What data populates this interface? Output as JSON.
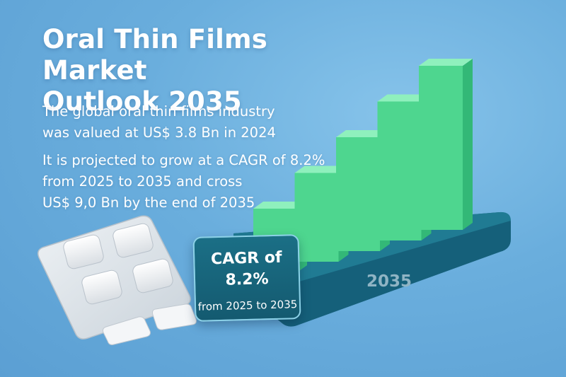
{
  "header": {
    "title_line1": "Oral Thin Films Market",
    "title_line2": "Outlook 2035"
  },
  "body_text": {
    "line1": "The global oral thin films industry",
    "line2": "was valued at US$ 3.8 Bn in 2024",
    "line3": "It is projected to grow at a CAGR of 8.2%",
    "line4": "from 2025 to 2035 and cross",
    "line5": "US$ 9,0 Bn by the end of 2035"
  },
  "badge": {
    "title": "CAGR of 8.2%",
    "subtitle": "from 2025 to 2035"
  },
  "chart_data": {
    "type": "bar",
    "categories": [
      "",
      "",
      "",
      "",
      ""
    ],
    "values": [
      1,
      2,
      3,
      4,
      5
    ],
    "platform_label": "2035",
    "colors": {
      "bar_front": "#4ed68f",
      "bar_top": "#8ff0bd",
      "bar_side": "#33b877",
      "platform_top": "#1f7890",
      "platform_front": "#135a6f"
    }
  },
  "colors": {
    "background": "#6aaedd",
    "text": "#ffffff",
    "badge": "#145a70",
    "blister": "#dfe5ea"
  }
}
